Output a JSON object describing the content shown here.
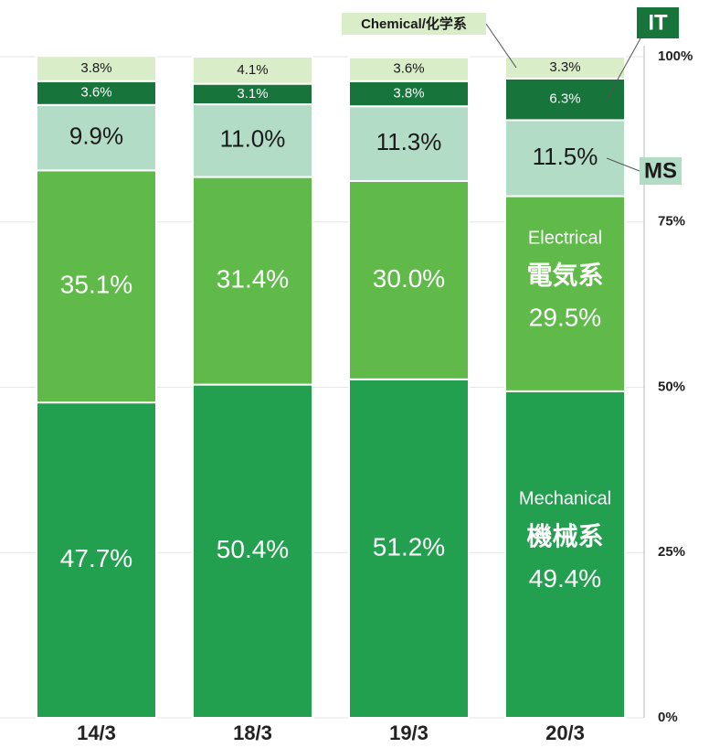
{
  "chart_data": {
    "type": "stacked_bar",
    "categories": [
      "14/3",
      "18/3",
      "19/3",
      "20/3"
    ],
    "series": [
      {
        "name": "Mechanical",
        "name_ja": "機械系",
        "color": "#23a04f",
        "values": [
          47.7,
          50.4,
          51.2,
          49.4
        ],
        "value_labels": [
          "47.7%",
          "50.4%",
          "51.2%",
          "49.4%"
        ]
      },
      {
        "name": "Electrical",
        "name_ja": "電気系",
        "color": "#5fba4a",
        "values": [
          35.1,
          31.4,
          30.0,
          29.5
        ],
        "value_labels": [
          "35.1%",
          "31.4%",
          "30.0%",
          "29.5%"
        ]
      },
      {
        "name": "MS",
        "color": "#b3dcc6",
        "values": [
          9.9,
          11.0,
          11.3,
          11.5
        ],
        "value_labels": [
          "9.9%",
          "11.0%",
          "11.3%",
          "11.5%"
        ]
      },
      {
        "name": "IT",
        "color": "#17743b",
        "values": [
          3.6,
          3.1,
          3.8,
          6.3
        ],
        "value_labels": [
          "3.6%",
          "3.1%",
          "3.8%",
          "6.3%"
        ]
      },
      {
        "name": "Chemical/化学系",
        "color": "#d9edc9",
        "values": [
          3.8,
          4.1,
          3.6,
          3.3
        ],
        "value_labels": [
          "3.8%",
          "4.1%",
          "3.6%",
          "3.3%"
        ]
      }
    ],
    "ylim": [
      0,
      100
    ],
    "yticks": [
      {
        "value": 0,
        "label": "0%"
      },
      {
        "value": 25,
        "label": "25%"
      },
      {
        "value": 50,
        "label": "50%"
      },
      {
        "value": 75,
        "label": "75%"
      },
      {
        "value": 100,
        "label": "100%"
      }
    ],
    "grid": true
  }
}
